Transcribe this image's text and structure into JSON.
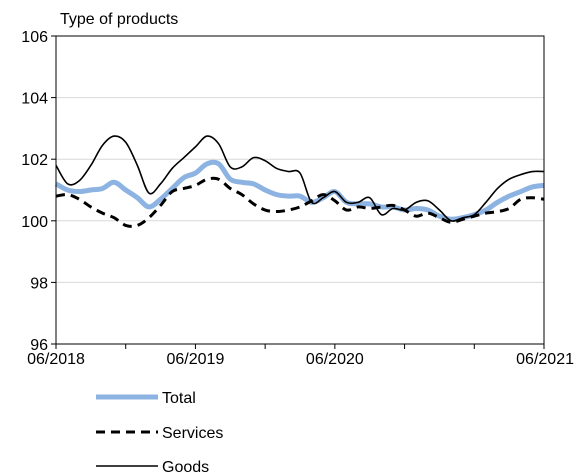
{
  "chart_data": {
    "type": "line",
    "subtitle": "Type of products",
    "ylim": [
      96,
      106
    ],
    "y_ticks": [
      96,
      98,
      100,
      102,
      104,
      106
    ],
    "x_tick_labels": [
      "06/2018",
      "06/2019",
      "06/2020",
      "06/2021"
    ],
    "x_range_months": [
      "06/2018",
      "06/2021"
    ],
    "grid": {
      "horizontal": true,
      "vertical": false
    },
    "legend_position": "bottom-left",
    "series": [
      {
        "name": "Total",
        "color": "#8DB3E2",
        "line_style": "solid-thick",
        "values": [
          101.2,
          101.0,
          100.95,
          101.0,
          101.05,
          101.25,
          101.0,
          100.75,
          100.45,
          100.7,
          101.05,
          101.4,
          101.55,
          101.85,
          101.85,
          101.35,
          101.25,
          101.2,
          101.0,
          100.85,
          100.8,
          100.8,
          100.6,
          100.75,
          100.95,
          100.6,
          100.55,
          100.55,
          100.45,
          100.45,
          100.35,
          100.4,
          100.35,
          100.15,
          100.05,
          100.1,
          100.2,
          100.35,
          100.6,
          100.8,
          100.95,
          101.1,
          101.15
        ]
      },
      {
        "name": "Services",
        "color": "#000000",
        "line_style": "dashed",
        "values": [
          100.8,
          100.85,
          100.7,
          100.45,
          100.25,
          100.1,
          99.85,
          99.85,
          100.1,
          100.5,
          100.95,
          101.05,
          101.15,
          101.35,
          101.35,
          101.05,
          100.85,
          100.55,
          100.35,
          100.3,
          100.35,
          100.45,
          100.65,
          100.85,
          100.65,
          100.35,
          100.45,
          100.4,
          100.45,
          100.5,
          100.35,
          100.15,
          100.25,
          100.1,
          99.95,
          100.05,
          100.15,
          100.25,
          100.3,
          100.4,
          100.7,
          100.75,
          100.7
        ]
      },
      {
        "name": "Goods",
        "color": "#000000",
        "line_style": "solid-thin",
        "values": [
          101.8,
          101.2,
          101.3,
          101.8,
          102.45,
          102.75,
          102.55,
          101.8,
          100.9,
          101.2,
          101.7,
          102.05,
          102.4,
          102.75,
          102.5,
          101.75,
          101.75,
          102.05,
          101.95,
          101.7,
          101.6,
          101.55,
          100.6,
          100.75,
          100.95,
          100.6,
          100.6,
          100.75,
          100.2,
          100.4,
          100.35,
          100.6,
          100.65,
          100.35,
          100.0,
          100.1,
          100.2,
          100.6,
          101.05,
          101.35,
          101.5,
          101.6,
          101.6
        ]
      }
    ]
  }
}
